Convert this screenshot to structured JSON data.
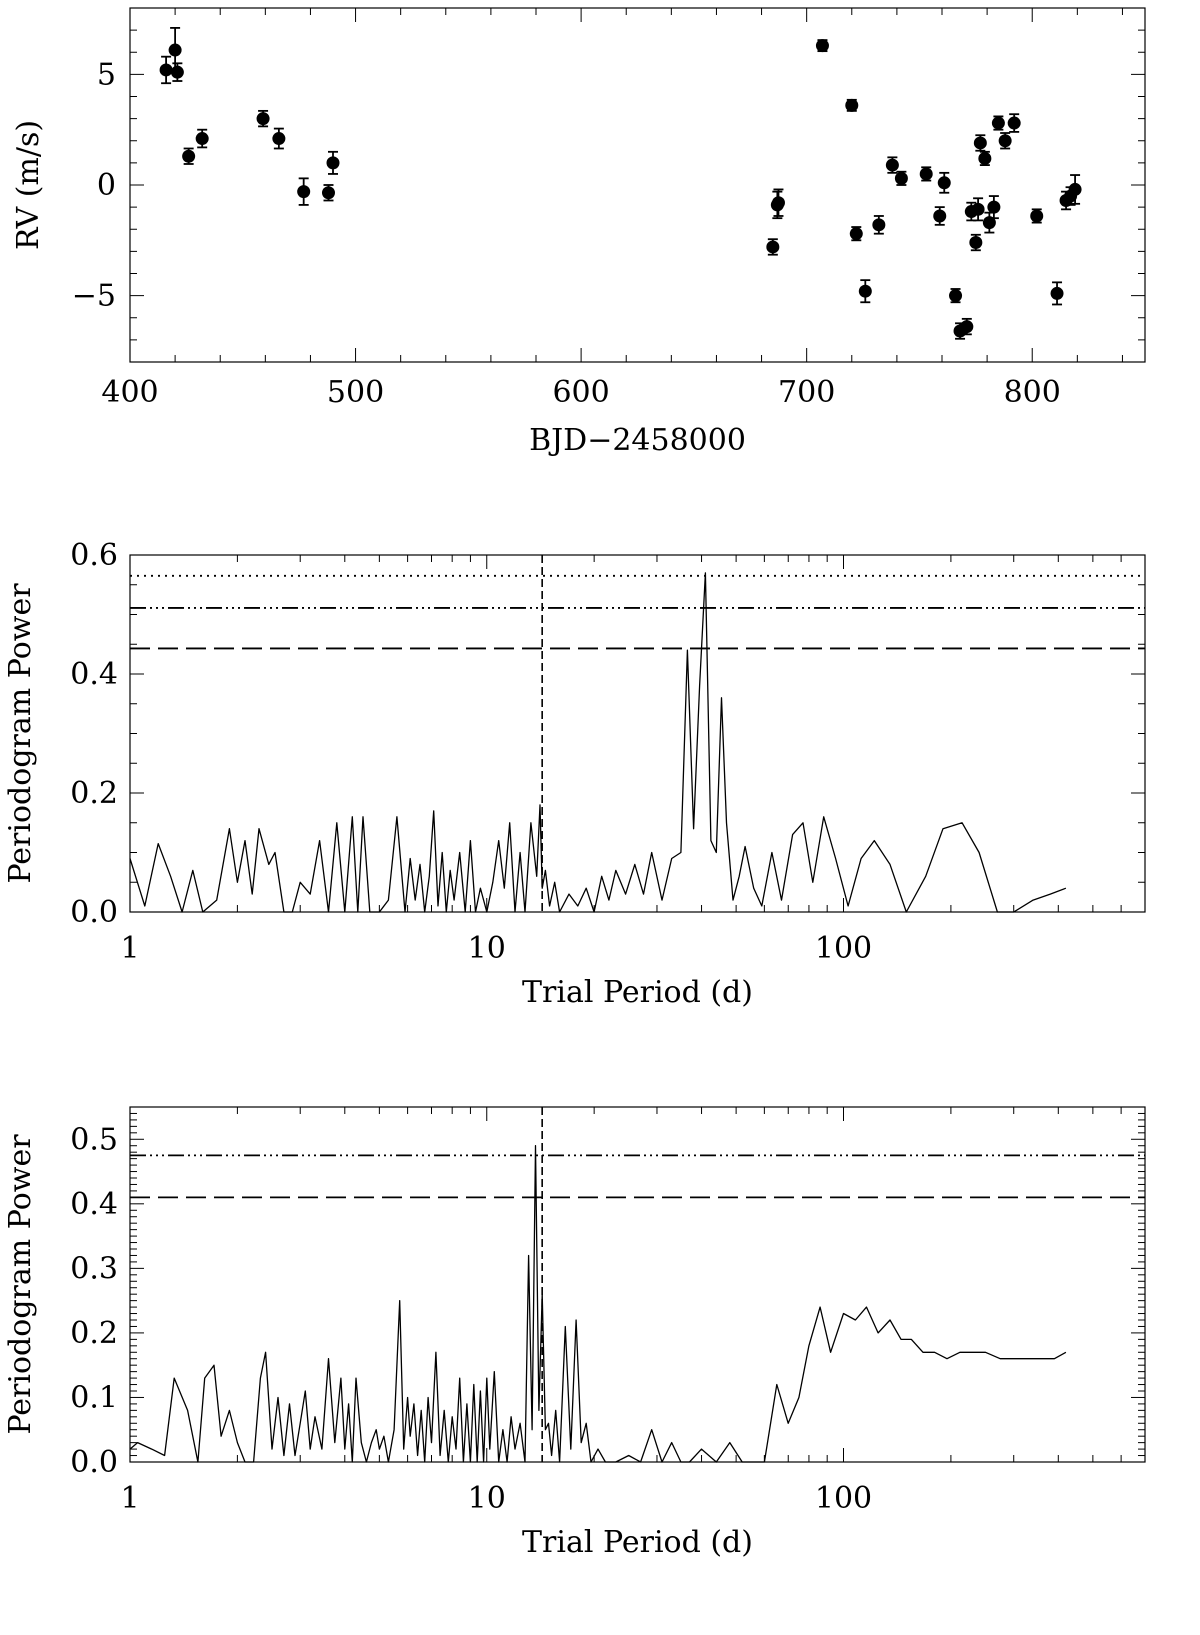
{
  "chart_data": [
    {
      "type": "scatter",
      "title": "",
      "xlabel": "BJD−2458000",
      "ylabel": "RV (m/s)",
      "xlim": [
        400,
        850
      ],
      "ylim": [
        -8,
        8
      ],
      "xticks": [
        "400",
        "500",
        "600",
        "700",
        "800"
      ],
      "yticks": [
        "5",
        "0",
        "−5"
      ],
      "grid": false,
      "series": [
        {
          "points": [
            {
              "x": 416,
              "y": 5.2,
              "err": 0.6
            },
            {
              "x": 420,
              "y": 6.1,
              "err": 1.0
            },
            {
              "x": 421,
              "y": 5.1,
              "err": 0.4
            },
            {
              "x": 426,
              "y": 1.3,
              "err": 0.35
            },
            {
              "x": 432,
              "y": 2.1,
              "err": 0.4
            },
            {
              "x": 459,
              "y": 3.0,
              "err": 0.35
            },
            {
              "x": 466,
              "y": 2.1,
              "err": 0.45
            },
            {
              "x": 477,
              "y": -0.3,
              "err": 0.6
            },
            {
              "x": 488,
              "y": -0.35,
              "err": 0.35
            },
            {
              "x": 490,
              "y": 1.0,
              "err": 0.5
            },
            {
              "x": 685,
              "y": -2.8,
              "err": 0.35
            },
            {
              "x": 687,
              "y": -0.9,
              "err": 0.6
            },
            {
              "x": 687.5,
              "y": -0.8,
              "err": 0.6
            },
            {
              "x": 707,
              "y": 6.3,
              "err": 0.25
            },
            {
              "x": 720,
              "y": 3.6,
              "err": 0.25
            },
            {
              "x": 722,
              "y": -2.2,
              "err": 0.3
            },
            {
              "x": 726,
              "y": -4.8,
              "err": 0.5
            },
            {
              "x": 732,
              "y": -1.8,
              "err": 0.4
            },
            {
              "x": 738,
              "y": 0.9,
              "err": 0.35
            },
            {
              "x": 742,
              "y": 0.3,
              "err": 0.3
            },
            {
              "x": 753,
              "y": 0.5,
              "err": 0.3
            },
            {
              "x": 759,
              "y": -1.4,
              "err": 0.4
            },
            {
              "x": 761,
              "y": 0.1,
              "err": 0.45
            },
            {
              "x": 766,
              "y": -5.0,
              "err": 0.3
            },
            {
              "x": 768,
              "y": -6.6,
              "err": 0.35
            },
            {
              "x": 771,
              "y": -6.4,
              "err": 0.35
            },
            {
              "x": 773,
              "y": -1.2,
              "err": 0.4
            },
            {
              "x": 775,
              "y": -2.6,
              "err": 0.35
            },
            {
              "x": 776,
              "y": -1.1,
              "err": 0.5
            },
            {
              "x": 777,
              "y": 1.9,
              "err": 0.35
            },
            {
              "x": 779,
              "y": 1.2,
              "err": 0.3
            },
            {
              "x": 781,
              "y": -1.7,
              "err": 0.45
            },
            {
              "x": 783,
              "y": -1.0,
              "err": 0.5
            },
            {
              "x": 785,
              "y": 2.8,
              "err": 0.3
            },
            {
              "x": 788,
              "y": 2.0,
              "err": 0.35
            },
            {
              "x": 792,
              "y": 2.8,
              "err": 0.4
            },
            {
              "x": 802,
              "y": -1.4,
              "err": 0.3
            },
            {
              "x": 811,
              "y": -4.9,
              "err": 0.5
            },
            {
              "x": 815,
              "y": -0.7,
              "err": 0.4
            },
            {
              "x": 817,
              "y": -0.5,
              "err": 0.4
            },
            {
              "x": 819,
              "y": -0.2,
              "err": 0.65
            }
          ]
        }
      ]
    },
    {
      "type": "line",
      "title": "",
      "xlabel": "Trial Period (d)",
      "ylabel": "Periodogram Power",
      "xscale": "log",
      "xlim": [
        1,
        700
      ],
      "ylim": [
        0,
        0.6
      ],
      "xticks": [
        "1",
        "10",
        "100"
      ],
      "yticks": [
        "0.0",
        "0.2",
        "0.4",
        "0.6"
      ],
      "grid": false,
      "hlines": [
        {
          "y": 0.565,
          "style": "dotted"
        },
        {
          "y": 0.511,
          "style": "dash-dot-dot-dot"
        },
        {
          "y": 0.443,
          "style": "long-dash"
        }
      ],
      "vlines": [
        {
          "x": 14.3,
          "style": "dashed"
        }
      ],
      "series": [
        {
          "x": [
            1.0,
            1.1,
            1.2,
            1.3,
            1.4,
            1.5,
            1.6,
            1.75,
            1.9,
            2.0,
            2.1,
            2.2,
            2.3,
            2.45,
            2.55,
            2.7,
            2.85,
            3.0,
            3.2,
            3.4,
            3.6,
            3.8,
            4.0,
            4.2,
            4.35,
            4.5,
            4.7,
            5.0,
            5.3,
            5.6,
            5.9,
            6.1,
            6.3,
            6.5,
            6.7,
            6.9,
            7.1,
            7.3,
            7.5,
            7.7,
            7.9,
            8.1,
            8.4,
            8.7,
            9.0,
            9.3,
            9.6,
            10.0,
            10.4,
            10.8,
            11.2,
            11.6,
            12.0,
            12.4,
            12.8,
            13.3,
            13.8,
            14.1,
            14.3,
            14.6,
            15.0,
            15.5,
            16.0,
            17.0,
            18.0,
            19.0,
            20.0,
            21.0,
            22.0,
            23.0,
            24.5,
            26.0,
            27.5,
            29.0,
            31.0,
            33.0,
            35.0,
            36.5,
            38.0,
            39.5,
            41.0,
            42.5,
            44.0,
            45.5,
            47.0,
            49.0,
            51.0,
            53.0,
            56.0,
            59.0,
            63.0,
            67.0,
            72.0,
            77.0,
            82.0,
            88.0,
            95.0,
            103.0,
            112.0,
            122.0,
            135.0,
            150.0,
            170.0,
            190.0,
            215.0,
            240.0,
            270.0,
            300.0,
            340.0,
            380.0,
            420.0
          ],
          "y": [
            0.09,
            0.01,
            0.115,
            0.06,
            0.0,
            0.07,
            0.0,
            0.02,
            0.14,
            0.05,
            0.12,
            0.03,
            0.14,
            0.08,
            0.1,
            0.0,
            0.0,
            0.05,
            0.03,
            0.12,
            0.0,
            0.15,
            0.0,
            0.16,
            0.0,
            0.16,
            0.0,
            0.0,
            0.02,
            0.16,
            0.0,
            0.09,
            0.02,
            0.08,
            0.0,
            0.06,
            0.17,
            0.01,
            0.1,
            0.0,
            0.07,
            0.02,
            0.1,
            0.0,
            0.12,
            0.0,
            0.04,
            0.0,
            0.05,
            0.12,
            0.04,
            0.15,
            0.0,
            0.1,
            0.0,
            0.15,
            0.06,
            0.18,
            0.04,
            0.07,
            0.01,
            0.05,
            0.0,
            0.03,
            0.01,
            0.04,
            0.0,
            0.06,
            0.02,
            0.07,
            0.03,
            0.08,
            0.03,
            0.1,
            0.02,
            0.09,
            0.1,
            0.44,
            0.14,
            0.38,
            0.57,
            0.12,
            0.1,
            0.36,
            0.15,
            0.02,
            0.06,
            0.11,
            0.04,
            0.01,
            0.1,
            0.02,
            0.13,
            0.15,
            0.05,
            0.16,
            0.09,
            0.01,
            0.09,
            0.12,
            0.08,
            0.0,
            0.06,
            0.14,
            0.15,
            0.1,
            0.0,
            0.0,
            0.02,
            0.03,
            0.04
          ]
        }
      ]
    },
    {
      "type": "line",
      "title": "",
      "xlabel": "Trial Period (d)",
      "ylabel": "Periodogram Power",
      "xscale": "log",
      "xlim": [
        1,
        700
      ],
      "ylim": [
        0,
        0.55
      ],
      "xticks": [
        "1",
        "10",
        "100"
      ],
      "yticks": [
        "0.0",
        "0.1",
        "0.2",
        "0.3",
        "0.4",
        "0.5"
      ],
      "grid": false,
      "hlines": [
        {
          "y": 0.475,
          "style": "dash-dot-dot-dot"
        },
        {
          "y": 0.41,
          "style": "long-dash"
        }
      ],
      "vlines": [
        {
          "x": 14.3,
          "style": "dashed"
        }
      ],
      "series": [
        {
          "x": [
            1.0,
            1.05,
            1.15,
            1.25,
            1.33,
            1.45,
            1.55,
            1.62,
            1.72,
            1.8,
            1.9,
            2.0,
            2.1,
            2.22,
            2.32,
            2.4,
            2.5,
            2.6,
            2.7,
            2.8,
            2.9,
            3.0,
            3.1,
            3.2,
            3.3,
            3.45,
            3.6,
            3.75,
            3.9,
            4.0,
            4.1,
            4.2,
            4.3,
            4.45,
            4.6,
            4.75,
            4.9,
            5.0,
            5.15,
            5.3,
            5.5,
            5.7,
            5.85,
            6.0,
            6.1,
            6.25,
            6.4,
            6.55,
            6.7,
            6.85,
            7.0,
            7.2,
            7.4,
            7.6,
            7.8,
            8.0,
            8.2,
            8.4,
            8.6,
            8.8,
            9.0,
            9.2,
            9.4,
            9.6,
            9.8,
            10.0,
            10.2,
            10.5,
            10.8,
            11.1,
            11.4,
            11.7,
            12.0,
            12.4,
            12.8,
            13.1,
            13.4,
            13.7,
            14.0,
            14.3,
            14.6,
            14.9,
            15.2,
            15.6,
            16.0,
            16.6,
            17.2,
            17.8,
            18.4,
            19.0,
            19.6,
            20.5,
            21.5,
            23.0,
            25.0,
            27.0,
            29.0,
            31.0,
            33.0,
            35.0,
            37.0,
            40.0,
            44.0,
            48.0,
            52.0,
            56.0,
            60.0,
            65.0,
            70.0,
            75.0,
            80.0,
            86.0,
            92.0,
            100.0,
            108.0,
            116.0,
            125.0,
            135.0,
            145.0,
            155.0,
            167.0,
            180.0,
            195.0,
            212.0,
            230.0,
            250.0,
            275.0,
            300.0,
            330.0,
            360.0,
            390.0,
            420.0
          ],
          "y": [
            0.02,
            0.03,
            0.02,
            0.01,
            0.13,
            0.08,
            0.0,
            0.13,
            0.15,
            0.04,
            0.08,
            0.03,
            0.0,
            0.0,
            0.13,
            0.17,
            0.02,
            0.1,
            0.01,
            0.09,
            0.01,
            0.06,
            0.11,
            0.02,
            0.07,
            0.02,
            0.16,
            0.03,
            0.13,
            0.02,
            0.09,
            0.0,
            0.13,
            0.03,
            0.0,
            0.03,
            0.05,
            0.02,
            0.04,
            0.0,
            0.05,
            0.25,
            0.02,
            0.1,
            0.04,
            0.09,
            0.01,
            0.08,
            0.0,
            0.1,
            0.03,
            0.17,
            0.01,
            0.08,
            0.0,
            0.07,
            0.02,
            0.13,
            0.0,
            0.09,
            0.0,
            0.12,
            0.0,
            0.11,
            0.0,
            0.13,
            0.02,
            0.14,
            0.0,
            0.05,
            0.0,
            0.07,
            0.02,
            0.06,
            0.0,
            0.32,
            0.05,
            0.49,
            0.08,
            0.26,
            0.05,
            0.06,
            0.01,
            0.08,
            0.0,
            0.21,
            0.02,
            0.22,
            0.03,
            0.06,
            0.0,
            0.02,
            0.0,
            0.0,
            0.01,
            0.0,
            0.05,
            0.0,
            0.03,
            0.0,
            0.0,
            0.02,
            0.0,
            0.03,
            0.0,
            0.0,
            0.0,
            0.12,
            0.06,
            0.1,
            0.18,
            0.24,
            0.17,
            0.23,
            0.22,
            0.24,
            0.2,
            0.22,
            0.19,
            0.19,
            0.17,
            0.17,
            0.16,
            0.17,
            0.17,
            0.17,
            0.16,
            0.16,
            0.16,
            0.16,
            0.16,
            0.17
          ]
        }
      ]
    }
  ]
}
